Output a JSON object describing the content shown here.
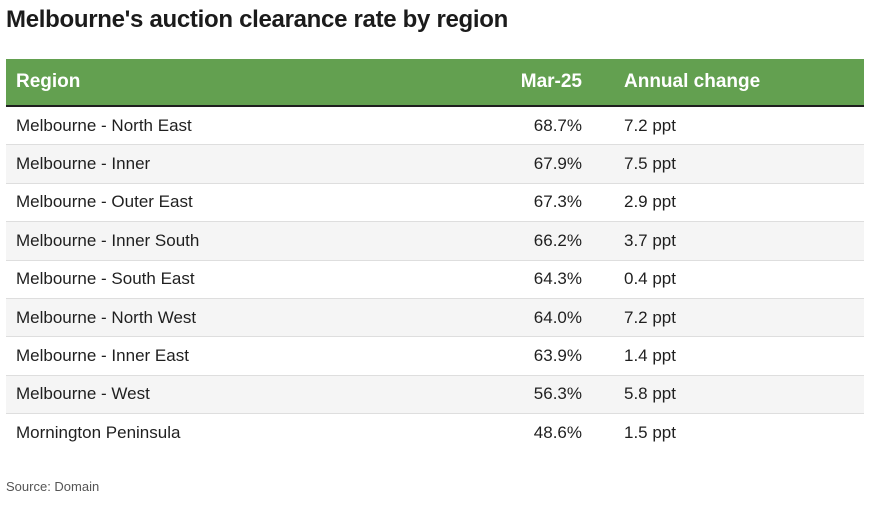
{
  "title": "Melbourne's auction clearance rate by region",
  "source": "Source: Domain",
  "colors": {
    "header_bg": "#63a050",
    "header_text": "#ffffff",
    "row_alt_bg": "#f5f5f5"
  },
  "chart_data": {
    "type": "table",
    "title": "Melbourne's auction clearance rate by region",
    "columns": [
      "Region",
      "Mar-25",
      "Annual change"
    ],
    "rows": [
      [
        "Melbourne - North East",
        "68.7%",
        "7.2 ppt"
      ],
      [
        "Melbourne - Inner",
        "67.9%",
        "7.5 ppt"
      ],
      [
        "Melbourne - Outer East",
        "67.3%",
        "2.9 ppt"
      ],
      [
        "Melbourne - Inner South",
        "66.2%",
        "3.7 ppt"
      ],
      [
        "Melbourne - South East",
        "64.3%",
        "0.4 ppt"
      ],
      [
        "Melbourne - North West",
        "64.0%",
        "7.2 ppt"
      ],
      [
        "Melbourne - Inner East",
        "63.9%",
        "1.4 ppt"
      ],
      [
        "Melbourne - West",
        "56.3%",
        "5.8 ppt"
      ],
      [
        "Mornington Peninsula",
        "48.6%",
        "1.5 ppt"
      ]
    ],
    "source": "Source: Domain"
  }
}
